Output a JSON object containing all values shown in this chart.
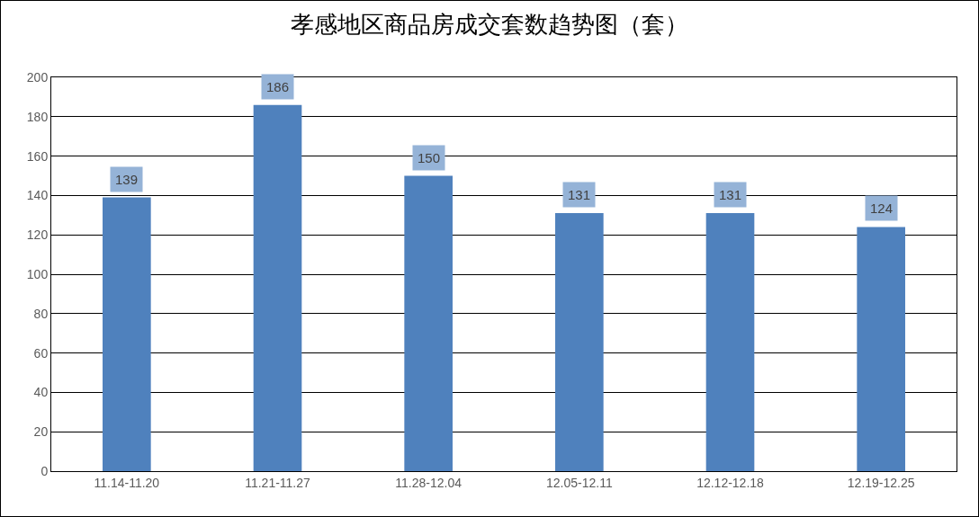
{
  "chart_data": {
    "type": "bar",
    "title": "孝感地区商品房成交套数趋势图（套）",
    "categories": [
      "11.14-11.20",
      "11.21-11.27",
      "11.28-12.04",
      "12.05-12.11",
      "12.12-12.18",
      "12.19-12.25"
    ],
    "values": [
      139,
      186,
      150,
      131,
      131,
      124
    ],
    "color": "#4f81bd",
    "ylim": [
      0,
      200
    ],
    "yticks": [
      0,
      20,
      40,
      60,
      80,
      100,
      120,
      140,
      160,
      180,
      200
    ],
    "grid": "y",
    "data_labels": true,
    "legend": false
  }
}
